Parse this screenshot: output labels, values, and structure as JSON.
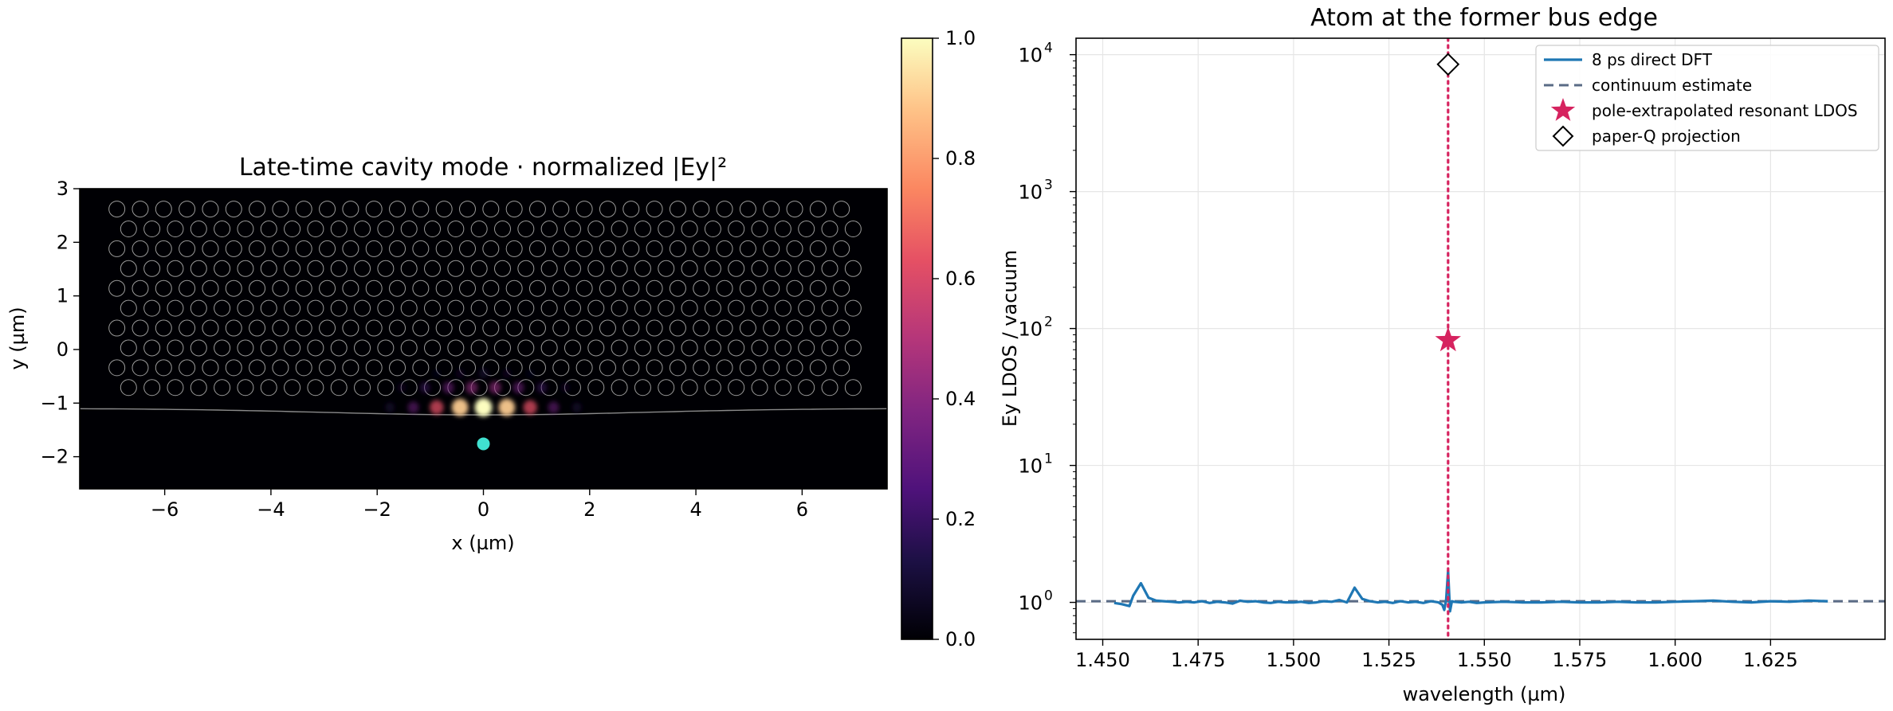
{
  "chart_data": [
    {
      "type": "heatmap",
      "title": "Late-time cavity mode · normalized |Ey|²",
      "xlabel": "x (µm)",
      "ylabel": "y (µm)",
      "xlim": [
        -7.6,
        7.6
      ],
      "ylim": [
        -2.6,
        3.0
      ],
      "xticks": [
        -6,
        -4,
        -2,
        0,
        2,
        4,
        6
      ],
      "yticks": [
        -2,
        -1,
        0,
        1,
        2,
        3
      ],
      "xtick_labels": [
        "−6",
        "−4",
        "−2",
        "0",
        "2",
        "4",
        "6"
      ],
      "ytick_labels": [
        "−2",
        "−1",
        "0",
        "1",
        "2",
        "3"
      ],
      "colormap": "magma",
      "colorbar": {
        "range": [
          0.0,
          1.0
        ],
        "ticks": [
          0.0,
          0.2,
          0.4,
          0.6,
          0.8,
          1.0
        ],
        "tick_labels": [
          "0.0",
          "0.2",
          "0.4",
          "0.6",
          "0.8",
          "1.0"
        ]
      },
      "lattice": {
        "pitch": 0.44,
        "hole_radius": 0.15,
        "row_ys": [
          2.62,
          2.25,
          1.88,
          1.51,
          1.14,
          0.77,
          0.4,
          0.03,
          -0.34,
          -0.71
        ],
        "x_extent": [
          -6.9,
          7.0
        ],
        "color": "#9a9a9a"
      },
      "waveguide_edge": {
        "y_center": -1.22,
        "y_edges": -1.1,
        "color": "#8a8a8a"
      },
      "mode_spots": [
        {
          "x": 0.0,
          "y": -1.08,
          "v": 1.0
        },
        {
          "x": -0.44,
          "y": -1.08,
          "v": 0.9
        },
        {
          "x": 0.44,
          "y": -1.08,
          "v": 0.9
        },
        {
          "x": -0.88,
          "y": -1.08,
          "v": 0.62
        },
        {
          "x": 0.88,
          "y": -1.08,
          "v": 0.62
        },
        {
          "x": -1.32,
          "y": -1.08,
          "v": 0.33
        },
        {
          "x": 1.32,
          "y": -1.08,
          "v": 0.33
        },
        {
          "x": -1.76,
          "y": -1.08,
          "v": 0.14
        },
        {
          "x": 1.76,
          "y": -1.08,
          "v": 0.14
        },
        {
          "x": -0.22,
          "y": -0.71,
          "v": 0.42
        },
        {
          "x": 0.22,
          "y": -0.71,
          "v": 0.42
        },
        {
          "x": -0.66,
          "y": -0.71,
          "v": 0.34
        },
        {
          "x": 0.66,
          "y": -0.71,
          "v": 0.34
        },
        {
          "x": -1.1,
          "y": -0.71,
          "v": 0.22
        },
        {
          "x": 1.1,
          "y": -0.71,
          "v": 0.22
        },
        {
          "x": -1.54,
          "y": -0.71,
          "v": 0.1
        },
        {
          "x": 1.54,
          "y": -0.71,
          "v": 0.1
        },
        {
          "x": 0.0,
          "y": -0.45,
          "v": 0.14
        },
        {
          "x": -0.44,
          "y": -0.45,
          "v": 0.1
        },
        {
          "x": 0.44,
          "y": -0.45,
          "v": 0.1
        },
        {
          "x": -0.88,
          "y": -0.45,
          "v": 0.06
        },
        {
          "x": 0.88,
          "y": -0.45,
          "v": 0.06
        }
      ],
      "atom_marker": {
        "x": 0.0,
        "y": -1.76,
        "color": "#40e0d0"
      }
    },
    {
      "type": "line",
      "title": "Atom at the former bus edge",
      "xlabel": "wavelength (µm)",
      "ylabel": "Ey LDOS / vacuum",
      "yscale": "log",
      "xlim": [
        1.443,
        1.655
      ],
      "ylim_log10": [
        -0.27,
        4.12
      ],
      "grid": true,
      "legend_position": "top-right",
      "xticks": [
        1.45,
        1.475,
        1.5,
        1.525,
        1.55,
        1.575,
        1.6,
        1.625
      ],
      "xtick_labels": [
        "1.450",
        "1.475",
        "1.500",
        "1.525",
        "1.550",
        "1.575",
        "1.600",
        "1.625"
      ],
      "yticks_log10": [
        0,
        1,
        2,
        3,
        4
      ],
      "ytick_base": "10",
      "ytick_exponents": [
        "0",
        "1",
        "2",
        "3",
        "4"
      ],
      "resonance_wavelength": 1.5405,
      "series": [
        {
          "name": "8 ps direct DFT",
          "color": "#1f77b4",
          "x": [
            1.453,
            1.455,
            1.457,
            1.458,
            1.46,
            1.462,
            1.464,
            1.466,
            1.468,
            1.47,
            1.472,
            1.474,
            1.476,
            1.478,
            1.48,
            1.482,
            1.484,
            1.486,
            1.488,
            1.49,
            1.492,
            1.494,
            1.496,
            1.498,
            1.5,
            1.502,
            1.504,
            1.506,
            1.508,
            1.51,
            1.512,
            1.514,
            1.516,
            1.518,
            1.52,
            1.522,
            1.524,
            1.526,
            1.528,
            1.53,
            1.532,
            1.534,
            1.536,
            1.538,
            1.539,
            1.5395,
            1.54,
            1.5405,
            1.541,
            1.5415,
            1.542,
            1.544,
            1.546,
            1.548,
            1.55,
            1.555,
            1.56,
            1.565,
            1.57,
            1.575,
            1.58,
            1.585,
            1.59,
            1.595,
            1.6,
            1.605,
            1.61,
            1.615,
            1.62,
            1.625,
            1.63,
            1.635,
            1.64
          ],
          "y": [
            0.99,
            0.97,
            0.94,
            1.12,
            1.38,
            1.08,
            1.03,
            1.02,
            1.01,
            1.0,
            1.01,
            1.0,
            1.02,
            0.99,
            1.01,
            1.0,
            0.98,
            1.03,
            1.01,
            1.02,
            1.0,
            0.99,
            1.01,
            1.0,
            1.0,
            1.01,
            0.99,
            1.0,
            1.02,
            1.01,
            1.04,
            1.0,
            1.28,
            1.06,
            1.02,
            1.0,
            1.01,
            0.99,
            1.02,
            1.0,
            1.01,
            0.99,
            1.02,
            1.0,
            0.96,
            0.88,
            1.05,
            1.7,
            0.86,
            1.02,
            1.01,
            1.0,
            1.01,
            0.99,
            1.0,
            1.01,
            1.0,
            1.0,
            1.01,
            1.0,
            1.0,
            1.01,
            1.0,
            1.0,
            1.01,
            1.02,
            1.03,
            1.01,
            1.0,
            1.02,
            1.01,
            1.03,
            1.02
          ]
        },
        {
          "name": "continuum estimate",
          "color": "#5a6b85",
          "style": "dashed",
          "y_constant": 1.02
        },
        {
          "name": "pole-extrapolated resonant LDOS",
          "color": "#d6235f",
          "marker": "star",
          "x": [
            1.5405
          ],
          "y": [
            82
          ]
        },
        {
          "name": "paper-Q projection",
          "color": "#000000",
          "marker": "diamond",
          "x": [
            1.5405
          ],
          "y": [
            8500
          ]
        }
      ]
    }
  ]
}
